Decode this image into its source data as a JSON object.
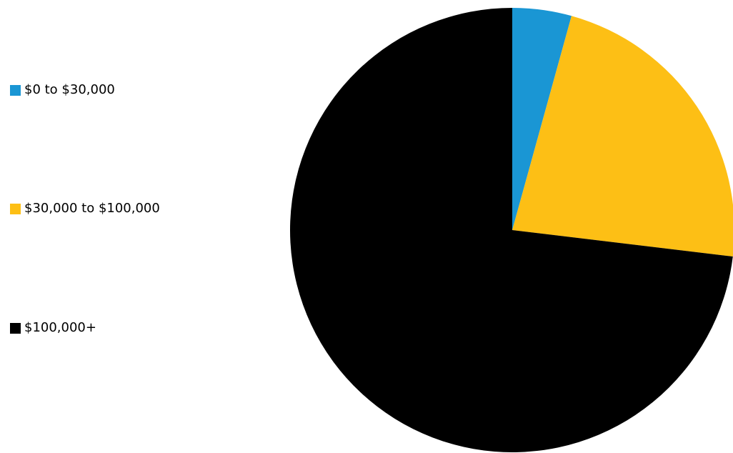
{
  "chart_data": {
    "type": "pie",
    "title": "",
    "categories": [
      "$0 to $30,000",
      "$30,000 to $100,000",
      "$100,000+"
    ],
    "values": [
      4.3,
      22.6,
      73.1
    ],
    "colors": [
      "#1A96D4",
      "#FDBF15",
      "#000000"
    ],
    "start_angle_deg": 0,
    "direction": "clockwise",
    "legend_position": "left"
  }
}
